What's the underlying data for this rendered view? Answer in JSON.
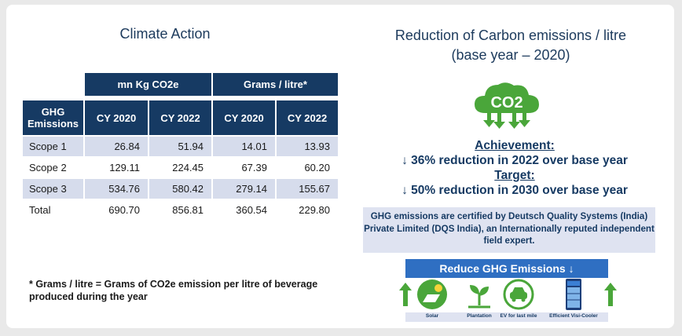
{
  "left": {
    "title": "Climate Action",
    "table": {
      "group_headers": [
        "mn Kg CO2e",
        "Grams / litre*"
      ],
      "col_headers": [
        "GHG Emissions",
        "CY 2020",
        "CY 2022",
        "CY 2020",
        "CY 2022"
      ],
      "rows": [
        {
          "label": "Scope 1",
          "values": [
            "26.84",
            "51.94",
            "14.01",
            "13.93"
          ]
        },
        {
          "label": "Scope 2",
          "values": [
            "129.11",
            "224.45",
            "67.39",
            "60.20"
          ]
        },
        {
          "label": "Scope 3",
          "values": [
            "534.76",
            "580.42",
            "279.14",
            "155.67"
          ]
        },
        {
          "label": "Total",
          "values": [
            "690.70",
            "856.81",
            "360.54",
            "229.80"
          ]
        }
      ]
    },
    "footnote": "* Grams / litre = Grams of CO2e emission per litre of beverage produced during the year"
  },
  "right": {
    "title_line1": "Reduction of Carbon emissions / litre",
    "title_line2": "(base year – 2020)",
    "cloud_text": "CO2",
    "achievement_head": "Achievement:",
    "achievement_text": "↓ 36% reduction in 2022 over base year",
    "target_head": "Target:",
    "target_text": "↓ 50% reduction in 2030 over base year",
    "certification": "GHG emissions are certified by Deutsch Quality Systems (India) Private Limited (DQS India), an Internationally reputed independent field expert.",
    "reduce_banner": "Reduce GHG Emissions ↓",
    "initiatives": [
      "Solar",
      "Plantation",
      "EV for last mile",
      "Efficient Visi-Cooler"
    ]
  },
  "colors": {
    "navy": "#163a63",
    "shade": "#d6dcec",
    "green": "#4aa63a",
    "blue": "#2f6fc2"
  }
}
